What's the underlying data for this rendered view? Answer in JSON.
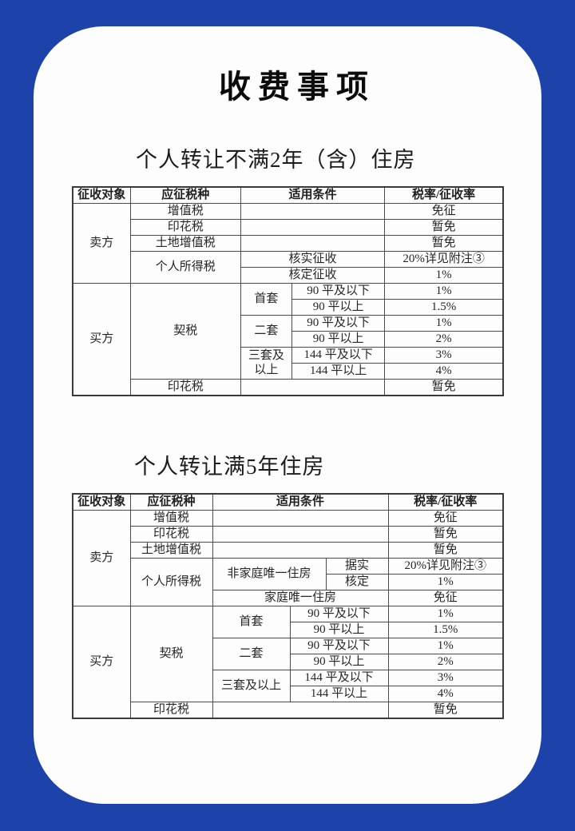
{
  "title": "收费事项",
  "colors": {
    "background_blue": "#1d43aa",
    "card_white": "#fdfdfd",
    "table_border": "#4b4b4b",
    "text": "#262626"
  },
  "tables": [
    {
      "caption": "个人转让不满2年（含）住房",
      "rows": [
        [
          {
            "t": "征收对象"
          },
          {
            "t": "应征税种"
          },
          {
            "t": "适用条件",
            "cs": 2
          },
          {
            "t": "税率/征收率"
          }
        ],
        [
          {
            "t": "卖方",
            "rs": 5
          },
          {
            "t": "增值税"
          },
          {
            "t": "",
            "cs": 2
          },
          {
            "t": "免征"
          }
        ],
        [
          {
            "t": "印花税"
          },
          {
            "t": "",
            "cs": 2
          },
          {
            "t": "暂免"
          }
        ],
        [
          {
            "t": "土地增值税"
          },
          {
            "t": "",
            "cs": 2
          },
          {
            "t": "暂免"
          }
        ],
        [
          {
            "t": "个人所得税",
            "rs": 2
          },
          {
            "t": "核实征收",
            "cs": 2
          },
          {
            "t": "20%详见附注③"
          }
        ],
        [
          {
            "t": "核定征收",
            "cs": 2
          },
          {
            "t": "1%"
          }
        ],
        [
          {
            "t": "买方",
            "rs": 7
          },
          {
            "t": "契税",
            "rs": 6
          },
          {
            "t": "首套",
            "rs": 2
          },
          {
            "t": "90 平及以下"
          },
          {
            "t": "1%"
          }
        ],
        [
          {
            "t": "90 平以上"
          },
          {
            "t": "1.5%"
          }
        ],
        [
          {
            "t": "二套",
            "rs": 2
          },
          {
            "t": "90 平及以下"
          },
          {
            "t": "1%"
          }
        ],
        [
          {
            "t": "90 平以上"
          },
          {
            "t": "2%"
          }
        ],
        [
          {
            "t": "三套及\n以上",
            "rs": 2
          },
          {
            "t": "144 平及以下"
          },
          {
            "t": "3%"
          }
        ],
        [
          {
            "t": "144 平以上"
          },
          {
            "t": "4%"
          }
        ],
        [
          {
            "t": "印花税"
          },
          {
            "t": "",
            "cs": 2
          },
          {
            "t": "暂免"
          }
        ]
      ]
    },
    {
      "caption": "个人转让满5年住房",
      "rows": [
        [
          {
            "t": "征收对象"
          },
          {
            "t": "应征税种"
          },
          {
            "t": "适用条件",
            "cs": 3
          },
          {
            "t": "税率/征收率"
          }
        ],
        [
          {
            "t": "卖方",
            "rs": 6
          },
          {
            "t": "增值税"
          },
          {
            "t": "",
            "cs": 3
          },
          {
            "t": "免征"
          }
        ],
        [
          {
            "t": "印花税"
          },
          {
            "t": "",
            "cs": 3
          },
          {
            "t": "暂免"
          }
        ],
        [
          {
            "t": "土地增值税"
          },
          {
            "t": "",
            "cs": 3
          },
          {
            "t": "暂免"
          }
        ],
        [
          {
            "t": "个人所得税",
            "rs": 3
          },
          {
            "t": "非家庭唯一住房",
            "cs": 2,
            "rs": 2
          },
          {
            "t": "据实"
          },
          {
            "t": "20%详见附注③"
          }
        ],
        [
          {
            "t": "核定"
          },
          {
            "t": "1%"
          }
        ],
        [
          {
            "t": "家庭唯一住房",
            "cs": 3
          },
          {
            "t": "免征"
          }
        ],
        [
          {
            "t": "买方",
            "rs": 7
          },
          {
            "t": "契税",
            "rs": 6
          },
          {
            "t": "首套",
            "rs": 2
          },
          {
            "t": "90 平及以下",
            "cs": 2
          },
          {
            "t": "1%"
          }
        ],
        [
          {
            "t": "90 平以上",
            "cs": 2
          },
          {
            "t": "1.5%"
          }
        ],
        [
          {
            "t": "二套",
            "rs": 2
          },
          {
            "t": "90 平及以下",
            "cs": 2
          },
          {
            "t": "1%"
          }
        ],
        [
          {
            "t": "90 平以上",
            "cs": 2
          },
          {
            "t": "2%"
          }
        ],
        [
          {
            "t": "三套及以上",
            "rs": 2
          },
          {
            "t": "144 平及以下",
            "cs": 2
          },
          {
            "t": "3%"
          }
        ],
        [
          {
            "t": "144 平以上",
            "cs": 2
          },
          {
            "t": "4%"
          }
        ],
        [
          {
            "t": "印花税"
          },
          {
            "t": "",
            "cs": 3
          },
          {
            "t": "暂免"
          }
        ]
      ]
    }
  ]
}
